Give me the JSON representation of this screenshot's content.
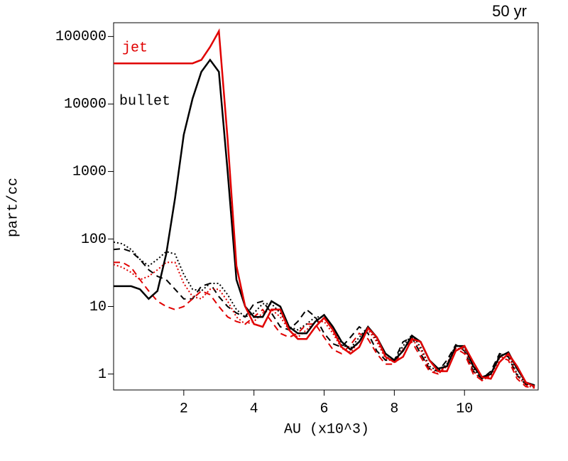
{
  "chart_data": {
    "type": "line",
    "title": "50 yr",
    "x_label": "AU (x10^3)",
    "y_label": "part/cc",
    "y_log": true,
    "xlim": [
      0,
      12.1
    ],
    "ylim": [
      0.58,
      160000
    ],
    "xticks": [
      2,
      4,
      6,
      8,
      10
    ],
    "yticks": [
      1,
      10,
      100,
      1000,
      10000,
      100000
    ],
    "x": [
      0,
      0.25,
      0.5,
      0.75,
      1,
      1.25,
      1.5,
      1.75,
      2,
      2.25,
      2.5,
      2.75,
      3,
      3.25,
      3.5,
      3.75,
      4,
      4.25,
      4.5,
      4.75,
      5,
      5.25,
      5.5,
      5.75,
      6,
      6.25,
      6.5,
      6.75,
      7,
      7.25,
      7.5,
      7.75,
      8,
      8.25,
      8.5,
      8.75,
      9,
      9.25,
      9.5,
      9.75,
      10,
      10.25,
      10.5,
      10.75,
      11,
      11.25,
      11.5,
      11.75,
      12
    ],
    "series": [
      {
        "color": "#000000",
        "dash": "dashed",
        "values": [
          70,
          72,
          65,
          50,
          35,
          28,
          25,
          18,
          13,
          13,
          20,
          22,
          14,
          10,
          8,
          7,
          11,
          12,
          8,
          5,
          4.5,
          6,
          9,
          7,
          4,
          2.8,
          2.5,
          3.5,
          5,
          4,
          2.2,
          1.6,
          1.6,
          3,
          3.5,
          2,
          1.2,
          1.1,
          1.6,
          2.7,
          2.2,
          1.1,
          0.85,
          1.1,
          2,
          1.8,
          0.95,
          0.7,
          0.65
        ]
      },
      {
        "color": "#000000",
        "dash": "dotted",
        "values": [
          90,
          85,
          70,
          50,
          40,
          50,
          65,
          60,
          30,
          18,
          17,
          22,
          22,
          15,
          9,
          7,
          8,
          11,
          11,
          8,
          5,
          4.5,
          5.5,
          7,
          7,
          4.5,
          2.7,
          2.4,
          3.5,
          5,
          3.2,
          1.8,
          1.6,
          2.6,
          3.8,
          2.5,
          1.3,
          1.1,
          1.4,
          2.7,
          2.4,
          1.2,
          0.85,
          1,
          1.9,
          2,
          1,
          0.72,
          0.66
        ]
      },
      {
        "color": "#e00000",
        "dash": "dashed",
        "values": [
          45,
          45,
          38,
          25,
          17,
          12,
          10,
          9,
          10,
          13,
          17,
          15,
          10,
          7,
          6,
          5.5,
          7,
          9,
          6,
          4,
          3.5,
          4,
          5.5,
          5.5,
          3.5,
          2.3,
          2,
          2.7,
          4,
          3.3,
          2,
          1.4,
          1.4,
          2.3,
          3,
          1.8,
          1.1,
          1,
          1.4,
          2.4,
          2,
          1,
          0.8,
          1,
          1.8,
          1.6,
          0.85,
          0.65,
          0.62
        ]
      },
      {
        "color": "#e00000",
        "dash": "dotted",
        "values": [
          42,
          38,
          32,
          25,
          28,
          35,
          45,
          45,
          22,
          14,
          13,
          18,
          18,
          12,
          7,
          5.5,
          6,
          8,
          9,
          7,
          4.5,
          3.5,
          4.5,
          6,
          6,
          4,
          2.4,
          2.1,
          3,
          4.5,
          3,
          1.7,
          1.5,
          2.3,
          3.3,
          2.3,
          1.2,
          1,
          1.3,
          2.4,
          2.3,
          1.1,
          0.8,
          0.95,
          1.7,
          1.9,
          0.95,
          0.68,
          0.62
        ]
      },
      {
        "name": "bullet",
        "color": "#000000",
        "dash": "solid",
        "values": [
          20,
          20,
          20,
          18,
          13,
          17,
          60,
          400,
          3500,
          12000,
          30000,
          45000,
          30000,
          1000,
          25,
          10,
          7,
          7,
          12,
          10,
          5,
          4,
          4,
          6,
          7.5,
          5,
          3,
          2.3,
          3,
          5,
          3.5,
          2,
          1.6,
          2.2,
          3.7,
          3,
          1.6,
          1.2,
          1.3,
          2.6,
          2.6,
          1.3,
          0.9,
          1,
          1.8,
          2.1,
          1.2,
          0.75,
          0.68
        ]
      },
      {
        "name": "jet",
        "color": "#e00000",
        "dash": "solid",
        "values": [
          40000,
          40000,
          40000,
          40000,
          40000,
          40000,
          40000,
          40000,
          40000,
          40000,
          45000,
          70000,
          120000,
          3000,
          40,
          10,
          5.5,
          5,
          9,
          9,
          4.5,
          3.3,
          3.3,
          5,
          6.8,
          4.5,
          2.5,
          2,
          2.5,
          4.8,
          3.5,
          1.8,
          1.5,
          1.8,
          3.3,
          3,
          1.6,
          1.1,
          1.1,
          2.2,
          2.6,
          1.5,
          0.9,
          0.85,
          1.5,
          2,
          1.3,
          0.75,
          0.65
        ]
      }
    ]
  }
}
